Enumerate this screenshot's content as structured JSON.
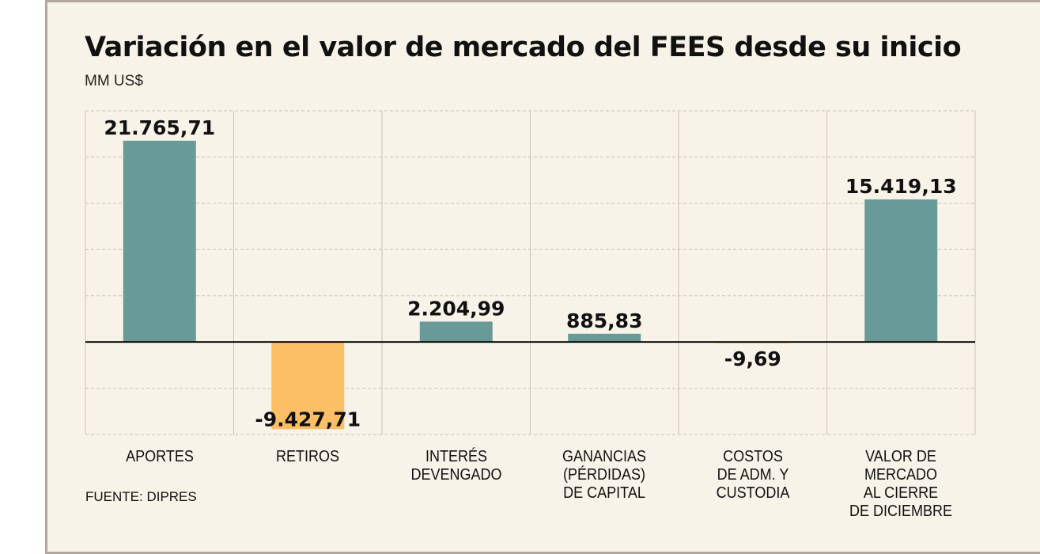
{
  "chart_data": {
    "type": "bar",
    "title": "Variación en el valor de mercado del FEES desde su inicio",
    "unit": "MM US$",
    "source": "FUENTE: DIPRES",
    "categories": [
      "APORTES",
      "RETIROS",
      "INTERÉS\nDEVENGADO",
      "GANANCIAS\n(PÉRDIDAS)\nDE CAPITAL",
      "COSTOS\nDE ADM. Y\nCUSTODIA",
      "VALOR DE MERCADO\nAL CIERRE\nDE DICIEMBRE"
    ],
    "values": [
      21765.71,
      -9427.71,
      2204.99,
      885.83,
      -9.69,
      15419.13
    ],
    "value_labels": [
      "21.765,71",
      "-9.427,71",
      "2.204,99",
      "885,83",
      "-9,69",
      "15.419,13"
    ],
    "ylim": [
      -10000,
      25000
    ],
    "grid": true,
    "colors": {
      "positive": "#689a98",
      "negative": "#fdbf65",
      "grid": "#c8c2b8",
      "baseline": "#111111",
      "background": "#f8f3e8"
    }
  }
}
